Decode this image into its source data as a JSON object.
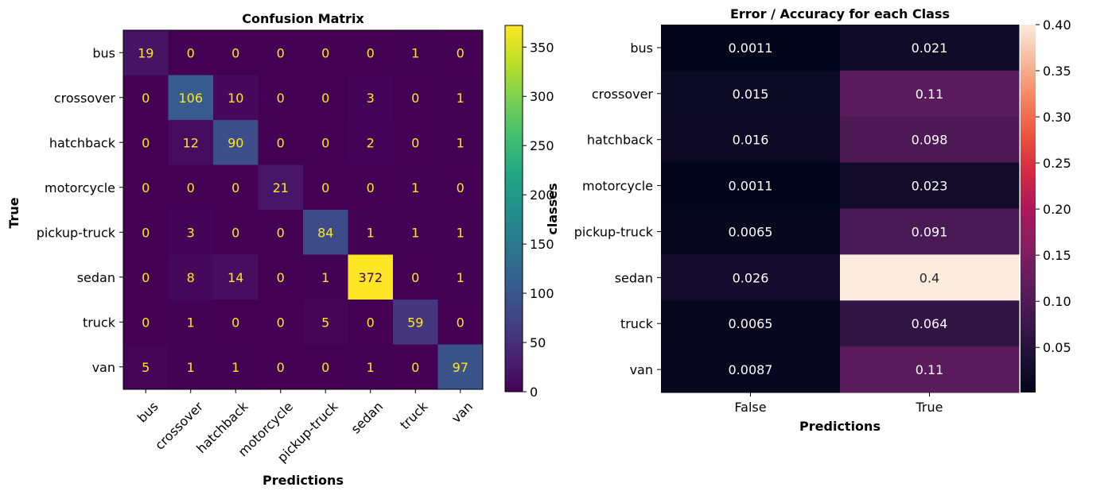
{
  "chart_data": [
    {
      "type": "heatmap",
      "title": "Confusion Matrix",
      "xlabel": "Predictions",
      "ylabel": "True",
      "x_categories": [
        "bus",
        "crossover",
        "hatchback",
        "motorcycle",
        "pickup-truck",
        "sedan",
        "truck",
        "van"
      ],
      "y_categories": [
        "bus",
        "crossover",
        "hatchback",
        "motorcycle",
        "pickup-truck",
        "sedan",
        "truck",
        "van"
      ],
      "values": [
        [
          19,
          0,
          0,
          0,
          0,
          0,
          1,
          0
        ],
        [
          0,
          106,
          10,
          0,
          0,
          3,
          0,
          1
        ],
        [
          0,
          12,
          90,
          0,
          0,
          2,
          0,
          1
        ],
        [
          0,
          0,
          0,
          21,
          0,
          0,
          1,
          0
        ],
        [
          0,
          3,
          0,
          0,
          84,
          1,
          1,
          1
        ],
        [
          0,
          8,
          14,
          0,
          1,
          372,
          0,
          1
        ],
        [
          0,
          1,
          0,
          0,
          5,
          0,
          59,
          0
        ],
        [
          5,
          1,
          1,
          0,
          0,
          1,
          0,
          97
        ]
      ],
      "colormap": "viridis",
      "colorbar": {
        "range": [
          0,
          372
        ],
        "ticks": [
          0,
          50,
          100,
          150,
          200,
          250,
          300,
          350
        ],
        "label": "classes"
      },
      "grid": false
    },
    {
      "type": "heatmap",
      "title": "Error / Accuracy for each Class",
      "xlabel": "Predictions",
      "ylabel": "",
      "x_categories": [
        "False",
        "True"
      ],
      "y_categories": [
        "bus",
        "crossover",
        "hatchback",
        "motorcycle",
        "pickup-truck",
        "sedan",
        "truck",
        "van"
      ],
      "values": [
        [
          0.0011,
          0.021
        ],
        [
          0.015,
          0.11
        ],
        [
          0.016,
          0.098
        ],
        [
          0.0011,
          0.023
        ],
        [
          0.0065,
          0.091
        ],
        [
          0.026,
          0.4
        ],
        [
          0.0065,
          0.064
        ],
        [
          0.0087,
          0.11
        ]
      ],
      "value_labels": [
        [
          "0.0011",
          "0.021"
        ],
        [
          "0.015",
          "0.11"
        ],
        [
          "0.016",
          "0.098"
        ],
        [
          "0.0011",
          "0.023"
        ],
        [
          "0.0065",
          "0.091"
        ],
        [
          "0.026",
          "0.4"
        ],
        [
          "0.0065",
          "0.064"
        ],
        [
          "0.0087",
          "0.11"
        ]
      ],
      "colormap": "rocket",
      "colorbar": {
        "range": [
          0.0011,
          0.4
        ],
        "ticks": [
          0.05,
          0.1,
          0.15,
          0.2,
          0.25,
          0.3,
          0.35,
          0.4
        ],
        "tick_labels": [
          "0.05",
          "0.10",
          "0.15",
          "0.20",
          "0.25",
          "0.30",
          "0.35",
          "0.40"
        ]
      },
      "grid": false
    }
  ]
}
